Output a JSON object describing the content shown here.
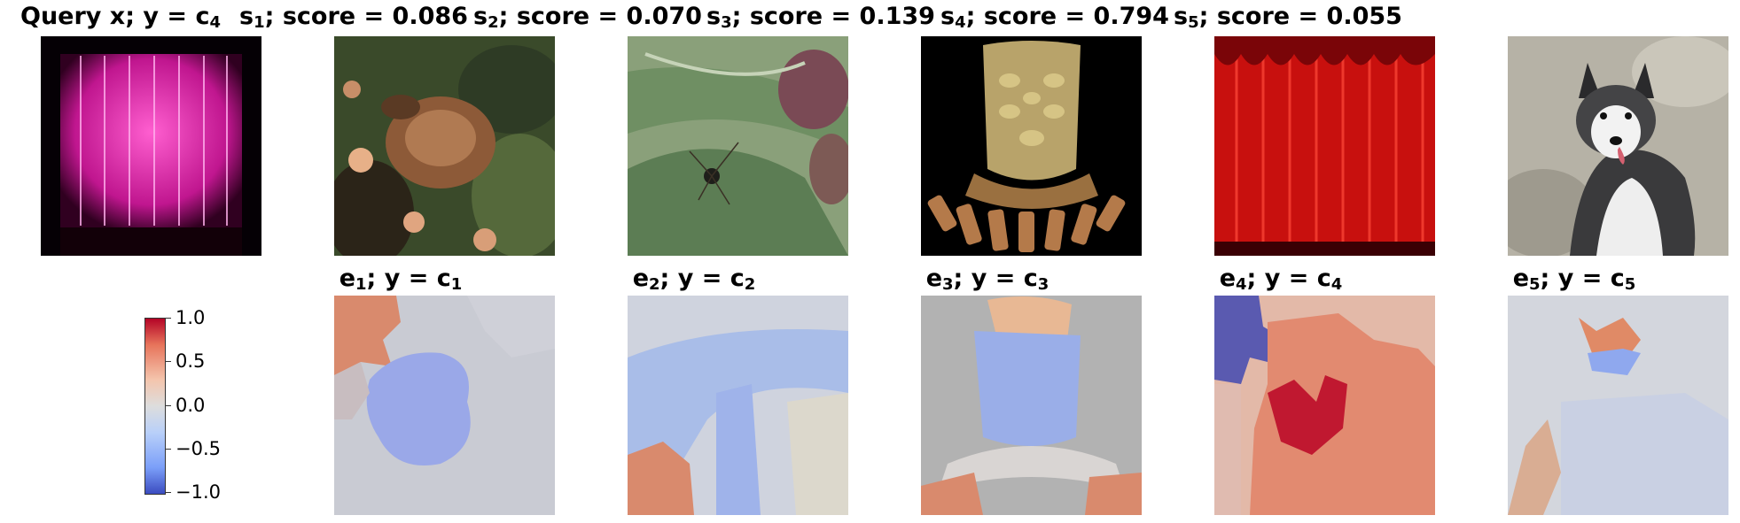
{
  "titles": {
    "query": {
      "pre": "Query x; y = c",
      "sub": "4"
    },
    "samples": [
      {
        "s": "s",
        "i": "1",
        "rest": "; score = 0.086"
      },
      {
        "s": "s",
        "i": "2",
        "rest": "; score = 0.070"
      },
      {
        "s": "s",
        "i": "3",
        "rest": "; score = 0.139"
      },
      {
        "s": "s",
        "i": "4",
        "rest": "; score = 0.794"
      },
      {
        "s": "s",
        "i": "5",
        "rest": "; score = 0.055"
      }
    ],
    "explanations": [
      {
        "e": "e",
        "i": "1",
        "mid": "; y = c",
        "j": "1"
      },
      {
        "e": "e",
        "i": "2",
        "mid": "; y = c",
        "j": "2"
      },
      {
        "e": "e",
        "i": "3",
        "mid": "; y = c",
        "j": "3"
      },
      {
        "e": "e",
        "i": "4",
        "mid": "; y = c",
        "j": "4"
      },
      {
        "e": "e",
        "i": "5",
        "mid": "; y = c",
        "j": "5"
      }
    ]
  },
  "colorbar": {
    "ticks": [
      "1.0",
      "0.5",
      "0.0",
      "−0.5",
      "−1.0"
    ],
    "max": 1.0,
    "min": -1.0,
    "colormap": "coolwarm"
  }
}
